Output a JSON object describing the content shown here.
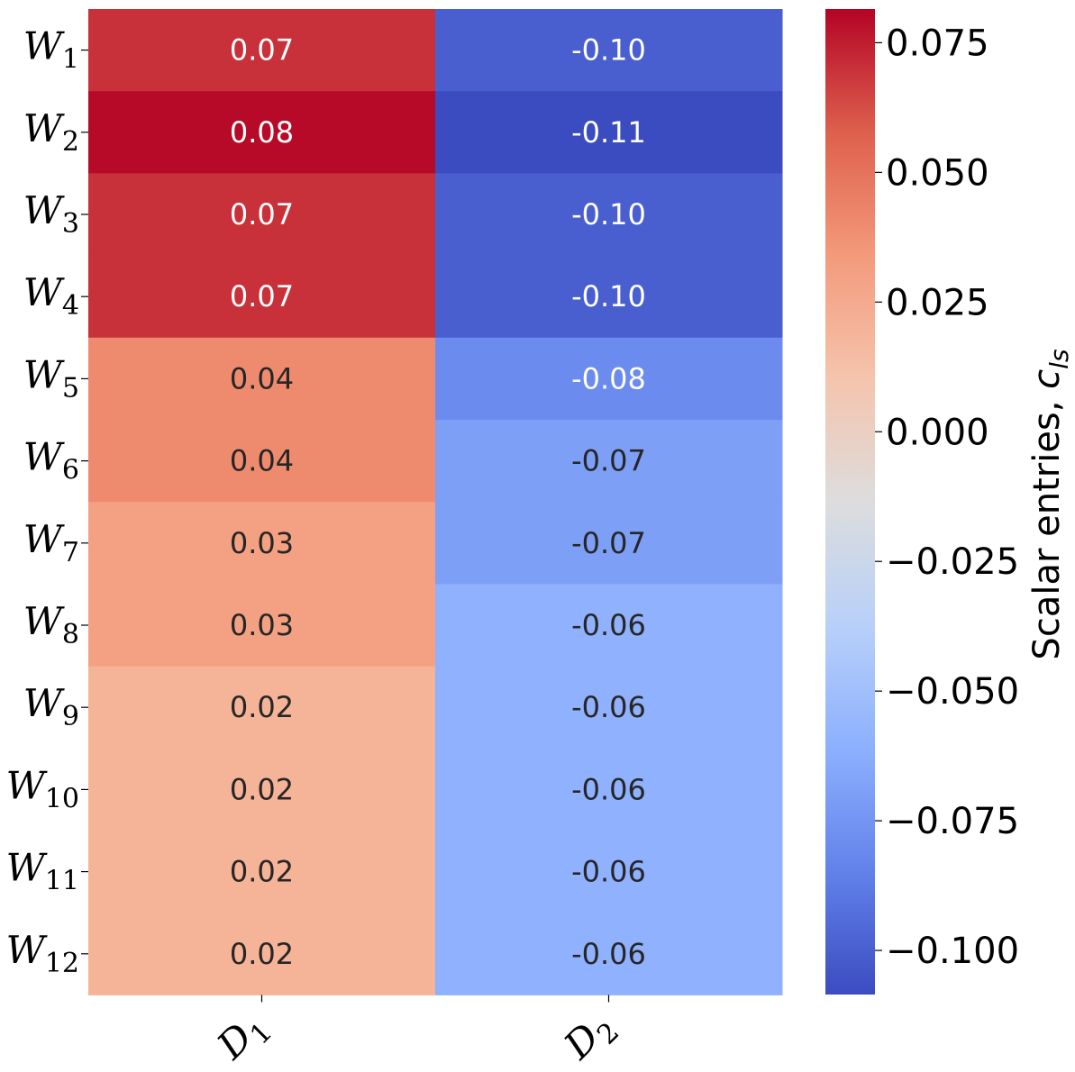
{
  "chart_data": {
    "type": "heatmap",
    "rows": [
      "W",
      "W",
      "W",
      "W",
      "W",
      "W",
      "W",
      "W",
      "W",
      "W",
      "W",
      "W"
    ],
    "row_subscripts": [
      "1",
      "2",
      "3",
      "4",
      "5",
      "6",
      "7",
      "8",
      "9",
      "10",
      "11",
      "12"
    ],
    "columns": [
      "D",
      "D"
    ],
    "column_subscripts": [
      "1",
      "2"
    ],
    "values": [
      [
        0.07,
        -0.1
      ],
      [
        0.08,
        -0.11
      ],
      [
        0.07,
        -0.1
      ],
      [
        0.07,
        -0.1
      ],
      [
        0.04,
        -0.08
      ],
      [
        0.04,
        -0.07
      ],
      [
        0.03,
        -0.07
      ],
      [
        0.03,
        -0.06
      ],
      [
        0.02,
        -0.06
      ],
      [
        0.02,
        -0.06
      ],
      [
        0.02,
        -0.06
      ],
      [
        0.02,
        -0.06
      ]
    ],
    "annotations": [
      [
        "0.07",
        "-0.10"
      ],
      [
        "0.08",
        "-0.11"
      ],
      [
        "0.07",
        "-0.10"
      ],
      [
        "0.07",
        "-0.10"
      ],
      [
        "0.04",
        "-0.08"
      ],
      [
        "0.04",
        "-0.07"
      ],
      [
        "0.03",
        "-0.07"
      ],
      [
        "0.03",
        "-0.06"
      ],
      [
        "0.02",
        "-0.06"
      ],
      [
        "0.02",
        "-0.06"
      ],
      [
        "0.02",
        "-0.06"
      ],
      [
        "0.02",
        "-0.06"
      ]
    ],
    "colormap": "coolwarm",
    "colorbar": {
      "range": [
        -0.1085,
        0.0815
      ],
      "ticks": [
        0.075,
        0.05,
        0.025,
        0.0,
        -0.025,
        -0.05,
        -0.075,
        -0.1
      ],
      "tick_labels": [
        "0.075",
        "0.050",
        "0.025",
        "0.000",
        "−0.025",
        "−0.050",
        "−0.075",
        "−0.100"
      ],
      "label": "Scalar entries, ",
      "label_symbol": "c",
      "label_symbol_subscript": "ls"
    }
  }
}
